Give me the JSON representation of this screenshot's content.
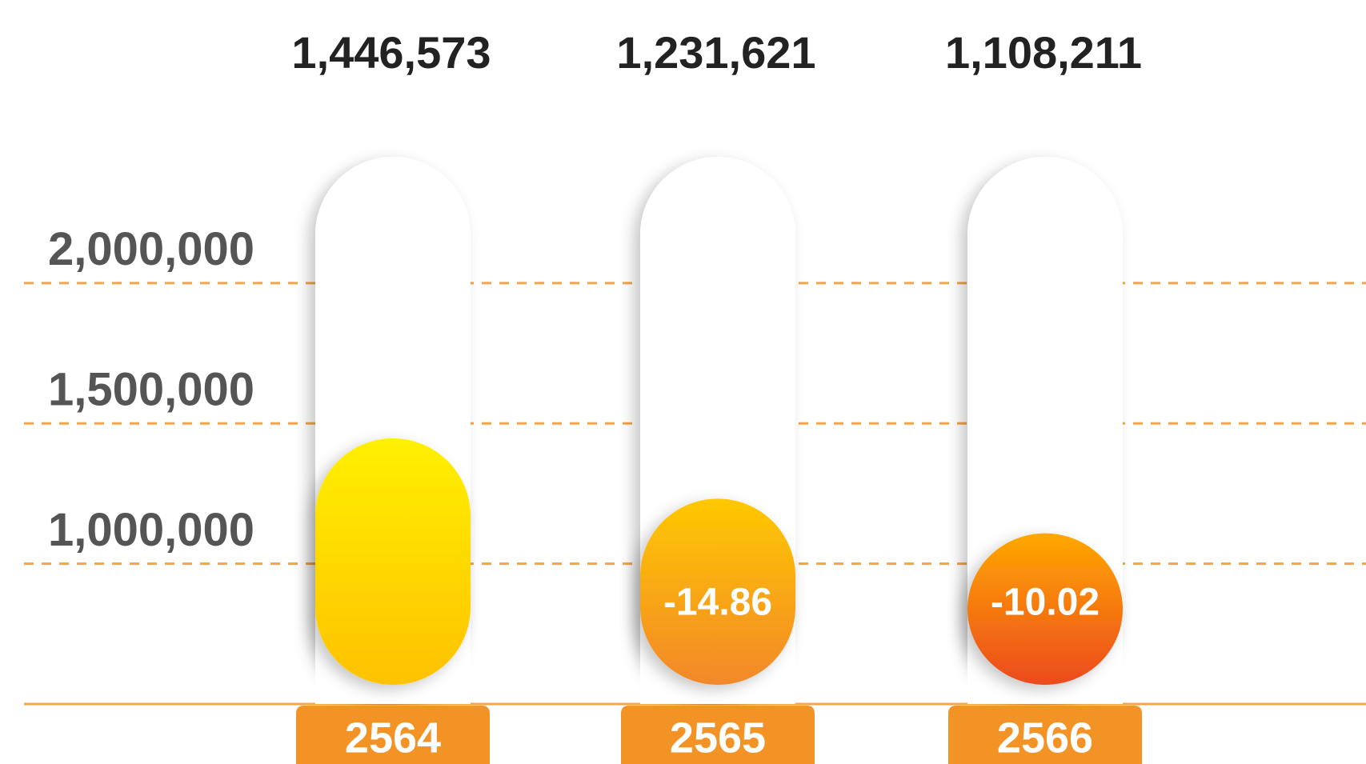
{
  "chart_data": {
    "type": "bar",
    "categories": [
      "2564",
      "2565",
      "2566"
    ],
    "values": [
      1446573,
      1231621,
      1108211
    ],
    "value_labels": [
      "1,446,573",
      "1,231,621",
      "1,108,211"
    ],
    "change_labels": [
      null,
      "-14.86",
      "-10.02"
    ],
    "ylim": [
      500000,
      2450000
    ],
    "yticks": [
      {
        "value": 1000000,
        "label": "1,000,000"
      },
      {
        "value": 1500000,
        "label": "1,500,000"
      },
      {
        "value": 2000000,
        "label": "2,000,000"
      }
    ],
    "grid": true,
    "grid_color": "#f2a54a",
    "axis_color": "#f2a54a",
    "category_color": "#f39325",
    "colors": [
      [
        "#fff000",
        "#ffc200"
      ],
      [
        "#ffc800",
        "#f2882a"
      ],
      [
        "#ffa800",
        "#ec4a1e"
      ]
    ]
  }
}
